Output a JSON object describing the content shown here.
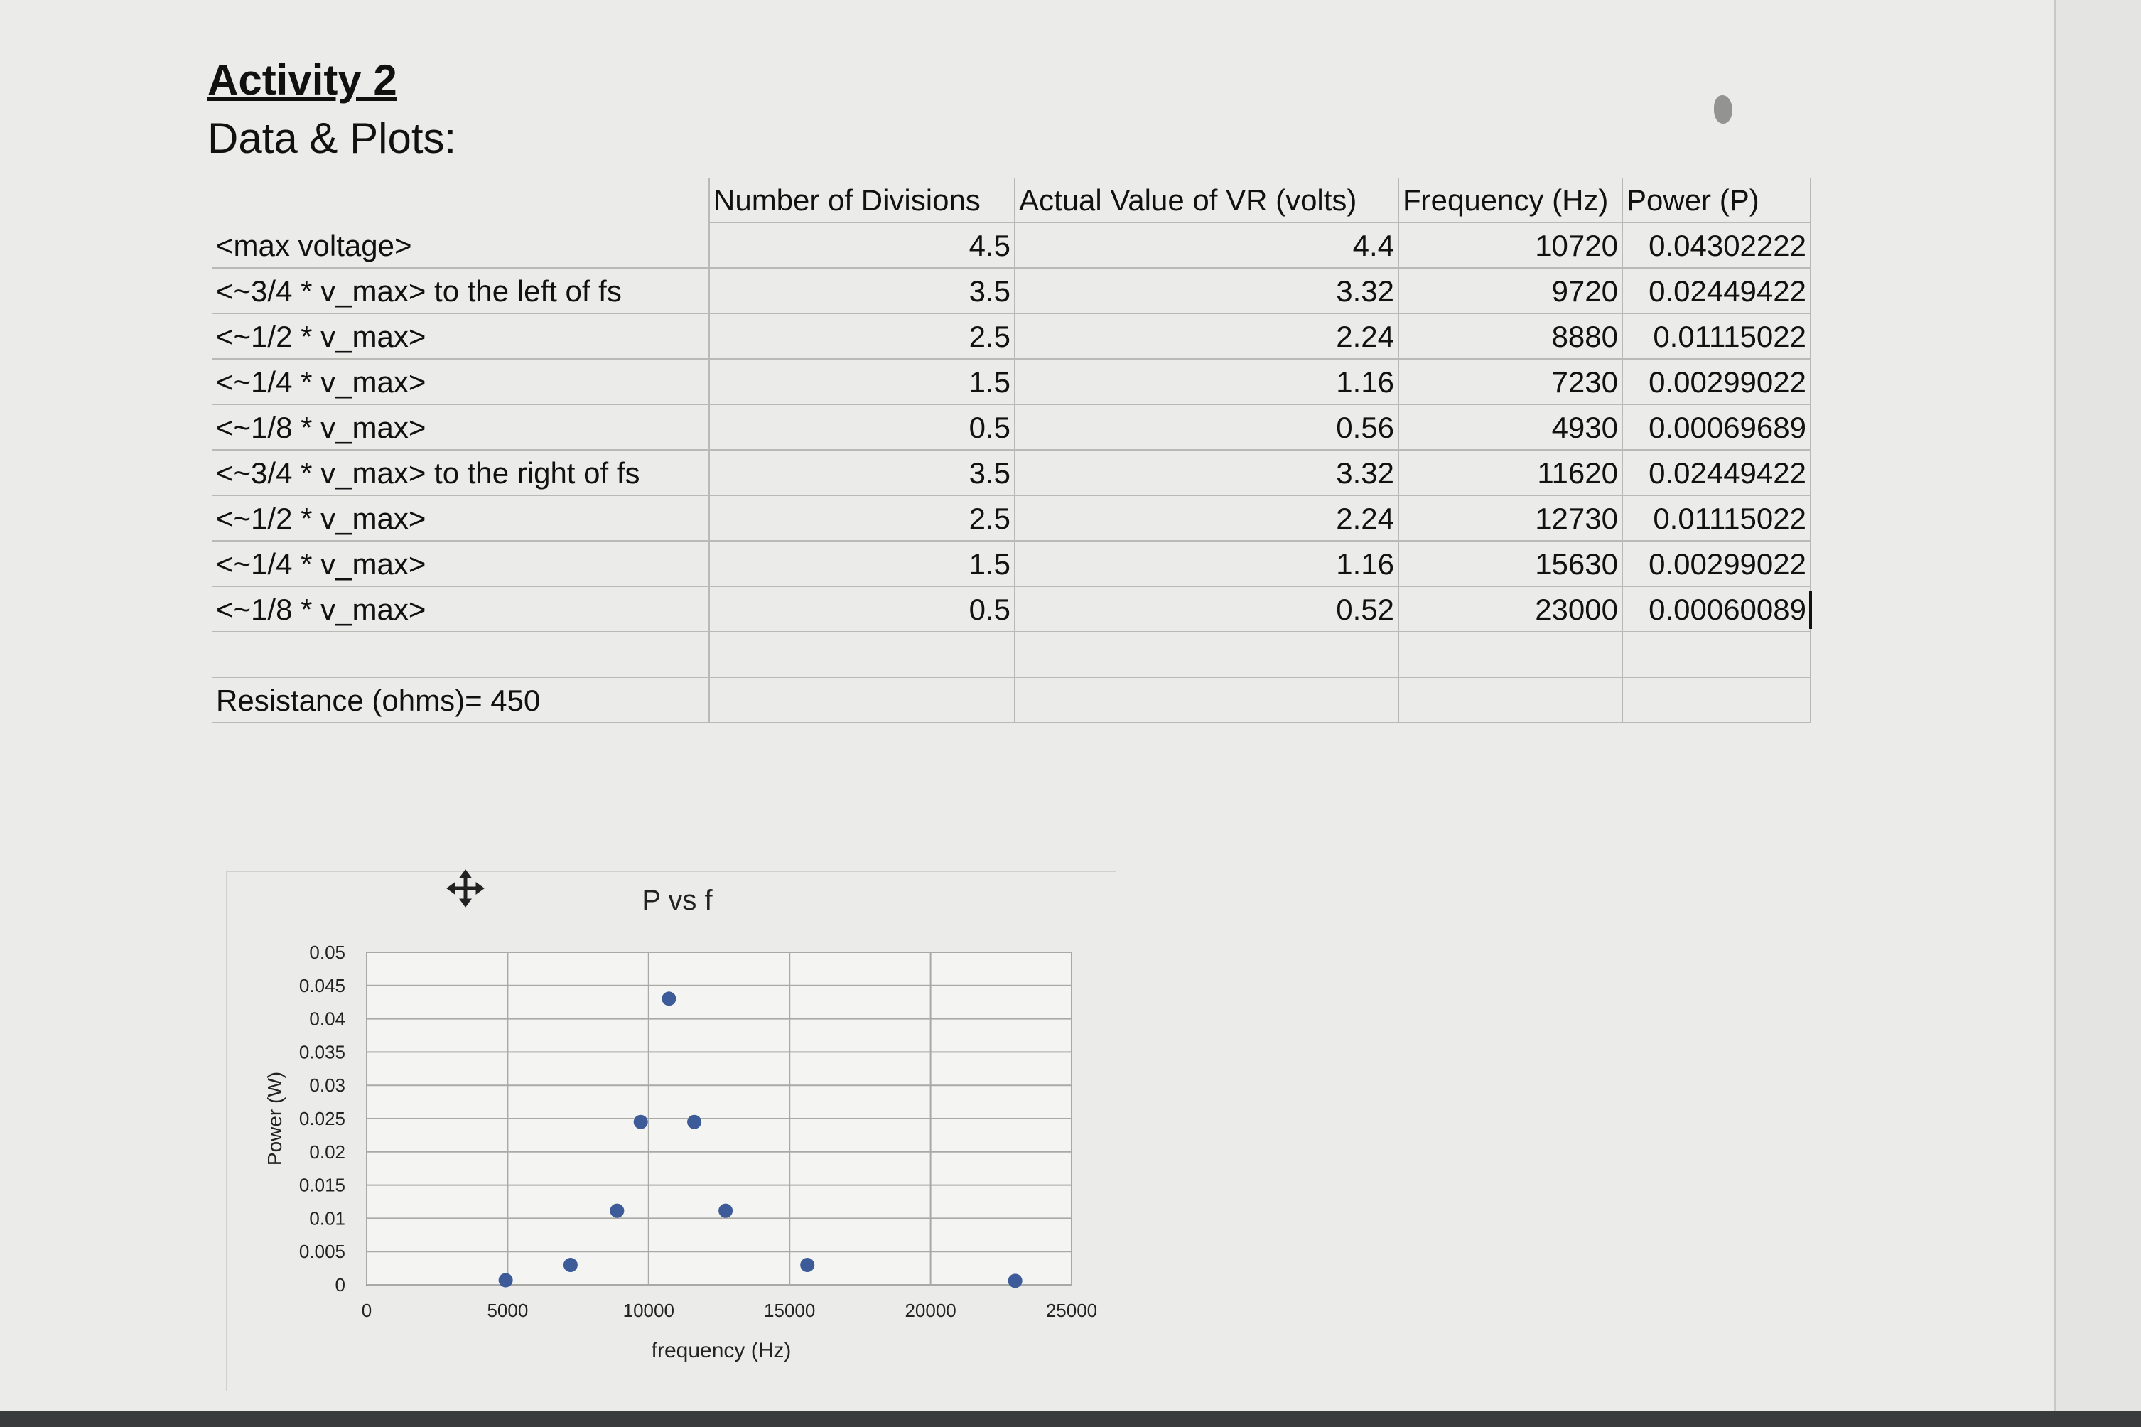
{
  "document": {
    "title": "Activity 2",
    "subtitle": "Data & Plots:"
  },
  "table": {
    "headers": [
      "",
      "Number of Divisions",
      "Actual Value of VR (volts)",
      "Frequency (Hz)",
      "Power (P)"
    ],
    "rows": [
      [
        "<max voltage>",
        "4.5",
        "4.4",
        "10720",
        "0.04302222"
      ],
      [
        "<~3/4 * v_max> to the left of fs",
        "3.5",
        "3.32",
        "9720",
        "0.02449422"
      ],
      [
        "<~1/2 * v_max>",
        "2.5",
        "2.24",
        "8880",
        "0.01115022"
      ],
      [
        "<~1/4 * v_max>",
        "1.5",
        "1.16",
        "7230",
        "0.00299022"
      ],
      [
        "<~1/8 * v_max>",
        "0.5",
        "0.56",
        "4930",
        "0.00069689"
      ],
      [
        "<~3/4 * v_max> to the right of fs",
        "3.5",
        "3.32",
        "11620",
        "0.02449422"
      ],
      [
        "<~1/2 * v_max>",
        "2.5",
        "2.24",
        "12730",
        "0.01115022"
      ],
      [
        "<~1/4 * v_max>",
        "1.5",
        "1.16",
        "15630",
        "0.00299022"
      ],
      [
        "<~1/8 * v_max>",
        "0.5",
        "0.52",
        "23000",
        "0.00060089"
      ]
    ],
    "resistance_label": "Resistance (ohms)= 450"
  },
  "chart_data": {
    "type": "scatter",
    "title": "P vs f",
    "xlabel": "frequency (Hz)",
    "ylabel": "Power (W)",
    "xlim": [
      0,
      25000
    ],
    "ylim": [
      0,
      0.05
    ],
    "x_ticks": [
      "0",
      "5000",
      "10000",
      "15000",
      "20000",
      "25000"
    ],
    "y_ticks": [
      "0",
      "0.005",
      "0.01",
      "0.015",
      "0.02",
      "0.025",
      "0.03",
      "0.035",
      "0.04",
      "0.045",
      "0.05"
    ],
    "grid": true,
    "marker_color": "#3d5a99",
    "points": [
      {
        "x": 10720,
        "y": 0.04302222
      },
      {
        "x": 9720,
        "y": 0.02449422
      },
      {
        "x": 8880,
        "y": 0.01115022
      },
      {
        "x": 7230,
        "y": 0.00299022
      },
      {
        "x": 4930,
        "y": 0.00069689
      },
      {
        "x": 11620,
        "y": 0.02449422
      },
      {
        "x": 12730,
        "y": 0.01115022
      },
      {
        "x": 15630,
        "y": 0.00299022
      },
      {
        "x": 23000,
        "y": 0.00060089
      }
    ]
  },
  "icons": {
    "chart_move": "move-arrows-icon"
  }
}
